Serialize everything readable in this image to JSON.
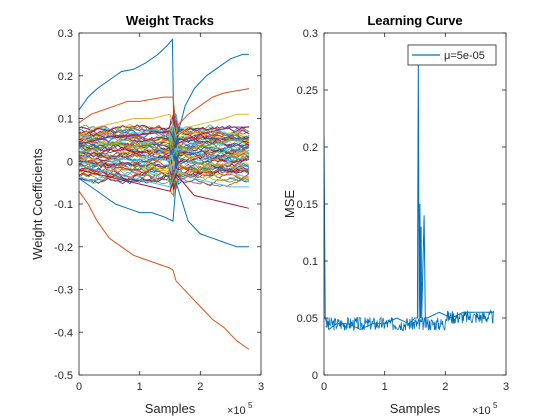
{
  "colors": {
    "background": "#ffffff",
    "axes": "#262626",
    "palette": [
      "#0072BD",
      "#D95319",
      "#EDB120",
      "#7E2F8E",
      "#77AC30",
      "#4DBEEE",
      "#A2142F"
    ]
  },
  "chart_data": [
    {
      "type": "line",
      "title": "Weight Tracks",
      "xlabel": "Samples",
      "ylabel": "Weight Coefficients",
      "x_exponent_label": "×10",
      "x_exponent_power": "5",
      "xlim": [
        0,
        300000
      ],
      "ylim": [
        -0.5,
        0.3
      ],
      "xticks": [
        0,
        100000,
        200000,
        300000
      ],
      "xtick_labels": [
        "0",
        "1",
        "2",
        "3"
      ],
      "yticks": [
        -0.5,
        -0.4,
        -0.3,
        -0.2,
        -0.1,
        0,
        0.1,
        0.2,
        0.3
      ],
      "ytick_labels": [
        "-0.5",
        "-0.4",
        "-0.3",
        "-0.2",
        "-0.1",
        "0",
        "0.1",
        "0.2",
        "0.3"
      ],
      "grid": false,
      "series": [
        {
          "color": "#0072BD",
          "points": [
            [
              0,
              0.12
            ],
            [
              15000,
              0.15
            ],
            [
              30000,
              0.17
            ],
            [
              50000,
              0.19
            ],
            [
              70000,
              0.21
            ],
            [
              90000,
              0.215
            ],
            [
              110000,
              0.23
            ],
            [
              130000,
              0.25
            ],
            [
              145000,
              0.27
            ],
            [
              154000,
              0.285
            ],
            [
              157000,
              0.0
            ],
            [
              162000,
              0.06
            ],
            [
              175000,
              0.13
            ],
            [
              190000,
              0.17
            ],
            [
              210000,
              0.2
            ],
            [
              230000,
              0.22
            ],
            [
              250000,
              0.24
            ],
            [
              270000,
              0.25
            ],
            [
              280000,
              0.25
            ]
          ]
        },
        {
          "color": "#D95319",
          "points": [
            [
              0,
              0.09
            ],
            [
              20000,
              0.11
            ],
            [
              40000,
              0.12
            ],
            [
              60000,
              0.13
            ],
            [
              80000,
              0.14
            ],
            [
              100000,
              0.14
            ],
            [
              120000,
              0.145
            ],
            [
              140000,
              0.15
            ],
            [
              155000,
              0.15
            ],
            [
              160000,
              0.08
            ],
            [
              180000,
              0.11
            ],
            [
              200000,
              0.13
            ],
            [
              220000,
              0.15
            ],
            [
              240000,
              0.16
            ],
            [
              260000,
              0.165
            ],
            [
              280000,
              0.17
            ]
          ]
        },
        {
          "color": "#EDB120",
          "points": [
            [
              0,
              0.06
            ],
            [
              30000,
              0.08
            ],
            [
              60000,
              0.09
            ],
            [
              90000,
              0.1
            ],
            [
              120000,
              0.1
            ],
            [
              150000,
              0.11
            ],
            [
              160000,
              0.06
            ],
            [
              180000,
              0.08
            ],
            [
              210000,
              0.09
            ],
            [
              240000,
              0.1
            ],
            [
              260000,
              0.11
            ],
            [
              280000,
              0.11
            ]
          ]
        },
        {
          "color": "#7E2F8E",
          "points": [
            [
              0,
              0.04
            ],
            [
              30000,
              0.05
            ],
            [
              60000,
              0.06
            ],
            [
              90000,
              0.06
            ],
            [
              120000,
              0.065
            ],
            [
              150000,
              0.07
            ],
            [
              160000,
              0.04
            ],
            [
              190000,
              0.06
            ],
            [
              220000,
              0.07
            ],
            [
              250000,
              0.08
            ],
            [
              280000,
              0.08
            ]
          ]
        },
        {
          "color": "#77AC30",
          "points": [
            [
              0,
              0.02
            ],
            [
              30000,
              0.03
            ],
            [
              60000,
              0.04
            ],
            [
              90000,
              0.035
            ],
            [
              120000,
              0.04
            ],
            [
              150000,
              0.05
            ],
            [
              160000,
              0.02
            ],
            [
              190000,
              0.03
            ],
            [
              220000,
              0.04
            ],
            [
              250000,
              0.05
            ],
            [
              280000,
              0.05
            ]
          ]
        },
        {
          "color": "#4DBEEE",
          "points": [
            [
              0,
              0.0
            ],
            [
              30000,
              -0.01
            ],
            [
              60000,
              0.01
            ],
            [
              90000,
              0.0
            ],
            [
              120000,
              0.01
            ],
            [
              150000,
              0.0
            ],
            [
              160000,
              0.03
            ],
            [
              190000,
              0.02
            ],
            [
              220000,
              0.01
            ],
            [
              250000,
              0.03
            ],
            [
              280000,
              0.02
            ]
          ]
        },
        {
          "color": "#A2142F",
          "points": [
            [
              0,
              -0.02
            ],
            [
              30000,
              -0.03
            ],
            [
              60000,
              -0.04
            ],
            [
              90000,
              -0.05
            ],
            [
              120000,
              -0.06
            ],
            [
              150000,
              -0.07
            ],
            [
              160000,
              -0.03
            ],
            [
              190000,
              -0.08
            ],
            [
              220000,
              -0.09
            ],
            [
              250000,
              -0.1
            ],
            [
              280000,
              -0.11
            ]
          ]
        },
        {
          "color": "#0072BD",
          "points": [
            [
              0,
              -0.04
            ],
            [
              20000,
              -0.06
            ],
            [
              40000,
              -0.08
            ],
            [
              60000,
              -0.1
            ],
            [
              80000,
              -0.11
            ],
            [
              100000,
              -0.12
            ],
            [
              120000,
              -0.12
            ],
            [
              140000,
              -0.13
            ],
            [
              155000,
              -0.14
            ],
            [
              160000,
              -0.05
            ],
            [
              180000,
              -0.14
            ],
            [
              200000,
              -0.17
            ],
            [
              220000,
              -0.18
            ],
            [
              240000,
              -0.19
            ],
            [
              260000,
              -0.2
            ],
            [
              280000,
              -0.2
            ]
          ]
        },
        {
          "color": "#4DBEEE",
          "points": [
            [
              0,
              -0.01
            ],
            [
              30000,
              -0.02
            ],
            [
              60000,
              -0.03
            ],
            [
              90000,
              -0.04
            ],
            [
              120000,
              -0.05
            ],
            [
              150000,
              -0.06
            ],
            [
              160000,
              -0.02
            ],
            [
              190000,
              -0.04
            ],
            [
              220000,
              -0.05
            ],
            [
              250000,
              -0.06
            ],
            [
              280000,
              -0.06
            ]
          ]
        },
        {
          "color": "#D95319",
          "points": [
            [
              0,
              -0.07
            ],
            [
              15000,
              -0.1
            ],
            [
              30000,
              -0.14
            ],
            [
              50000,
              -0.18
            ],
            [
              70000,
              -0.2
            ],
            [
              90000,
              -0.22
            ],
            [
              110000,
              -0.23
            ],
            [
              130000,
              -0.24
            ],
            [
              150000,
              -0.25
            ],
            [
              155000,
              -0.255
            ],
            [
              160000,
              -0.28
            ],
            [
              180000,
              -0.31
            ],
            [
              200000,
              -0.34
            ],
            [
              220000,
              -0.37
            ],
            [
              240000,
              -0.39
            ],
            [
              260000,
              -0.42
            ],
            [
              280000,
              -0.44
            ]
          ]
        }
      ],
      "band": {
        "ylim": [
          -0.04,
          0.08
        ],
        "count": 70
      }
    },
    {
      "type": "line",
      "title": "Learning Curve",
      "xlabel": "Samples",
      "ylabel": "MSE",
      "x_exponent_label": "×10",
      "x_exponent_power": "5",
      "xlim": [
        0,
        300000
      ],
      "ylim": [
        0,
        0.3
      ],
      "xticks": [
        0,
        100000,
        200000,
        300000
      ],
      "xtick_labels": [
        "0",
        "1",
        "2",
        "3"
      ],
      "yticks": [
        0,
        0.05,
        0.1,
        0.15,
        0.2,
        0.25,
        0.3
      ],
      "ytick_labels": [
        "0",
        "0.05",
        "0.1",
        "0.15",
        "0.2",
        "0.25",
        "0.3"
      ],
      "grid": false,
      "legend": {
        "placement": "top-right",
        "label": "μ=5e-05"
      },
      "series": [
        {
          "color": "#0072BD",
          "points": [
            [
              0,
              0.21
            ],
            [
              2000,
              0.05
            ],
            [
              8000,
              0.04
            ],
            [
              20000,
              0.045
            ],
            [
              40000,
              0.045
            ],
            [
              60000,
              0.04
            ],
            [
              80000,
              0.045
            ],
            [
              100000,
              0.045
            ],
            [
              120000,
              0.05
            ],
            [
              140000,
              0.045
            ],
            [
              150000,
              0.05
            ],
            [
              154000,
              0.05
            ],
            [
              155500,
              0.275
            ],
            [
              157000,
              0.04
            ],
            [
              158000,
              0.15
            ],
            [
              159000,
              0.05
            ],
            [
              160000,
              0.13
            ],
            [
              161000,
              0.05
            ],
            [
              165000,
              0.14
            ],
            [
              167000,
              0.05
            ],
            [
              170000,
              0.05
            ],
            [
              190000,
              0.055
            ],
            [
              210000,
              0.05
            ],
            [
              230000,
              0.055
            ],
            [
              250000,
              0.055
            ],
            [
              270000,
              0.055
            ],
            [
              280000,
              0.055
            ]
          ]
        }
      ]
    }
  ]
}
